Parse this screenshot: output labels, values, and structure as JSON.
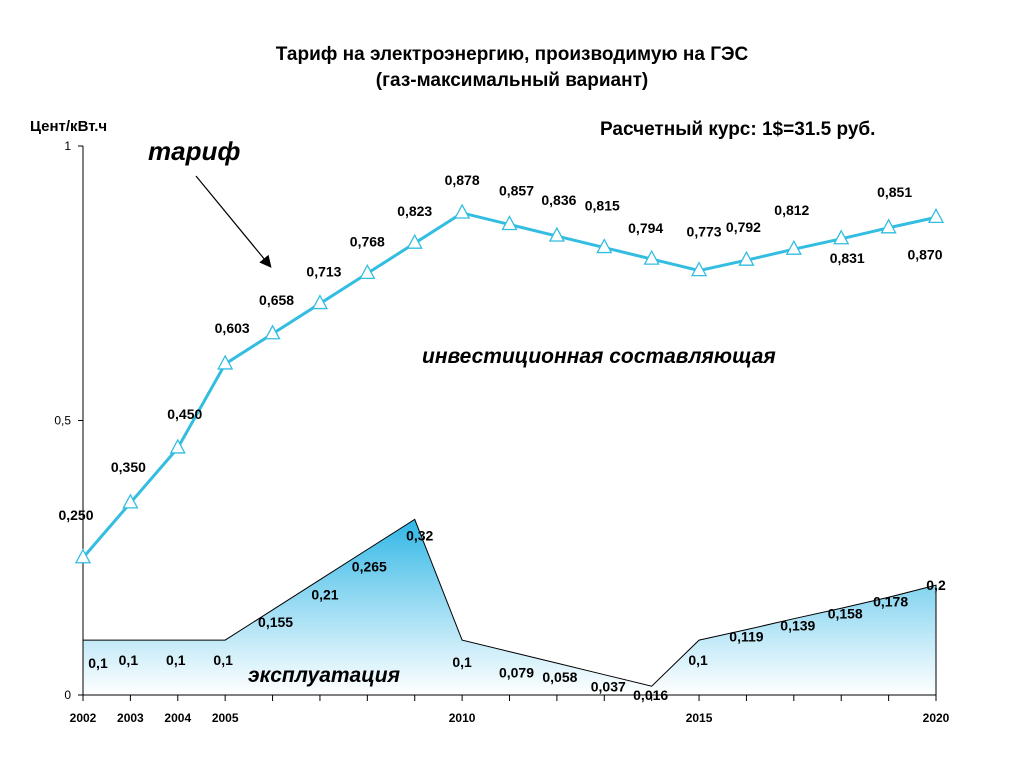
{
  "title_line1": "Тариф на электроэнергию, производимую на ГЭС",
  "title_line2": "(газ-максимальный вариант)",
  "rate_note": "Расчетный курс: 1$=31.5 руб.",
  "colors": {
    "tariff_line": "#33bde0",
    "area_top": "#2fb6e6",
    "area_bottom": "#ffffff",
    "axis": "#000000"
  },
  "chart_data": {
    "type": "line",
    "title": "Тариф на электроэнергию, производимую на ГЭС (газ-максимальный вариант)",
    "ylabel": "Цент/кВт.ч",
    "ylim": [
      0,
      1
    ],
    "y_ticks": [
      "0",
      "0,5",
      "1"
    ],
    "xlim": [
      2002,
      2020
    ],
    "x_tick_labels": [
      "2002",
      "2003",
      "2004",
      "2005",
      "2010",
      "2015",
      "2020"
    ],
    "x": [
      2002,
      2003,
      2004,
      2005,
      2006,
      2007,
      2008,
      2009,
      2010,
      2011,
      2012,
      2013,
      2014,
      2015,
      2016,
      2017,
      2018,
      2019,
      2020
    ],
    "series": [
      {
        "name": "тариф",
        "kind": "line",
        "values": [
          0.25,
          0.35,
          0.45,
          0.603,
          0.658,
          0.713,
          0.768,
          0.823,
          0.878,
          0.857,
          0.836,
          0.815,
          0.794,
          0.773,
          0.792,
          0.812,
          0.831,
          0.851,
          0.87
        ],
        "labels": [
          "0,250",
          "0,350",
          "0,450",
          "0,603",
          "0,658",
          "0,713",
          "0,768",
          "0,823",
          "0,878",
          "0,857",
          "0,836",
          "0,815",
          "0,794",
          "0,773",
          "0,792",
          "0,812",
          "0,831",
          "0,851",
          "0,870"
        ]
      },
      {
        "name": "эксплуатация",
        "kind": "area",
        "values": [
          0.1,
          0.1,
          0.1,
          0.1,
          0.155,
          0.21,
          0.265,
          0.32,
          0.1,
          0.079,
          0.058,
          0.037,
          0.016,
          0.1,
          0.119,
          0.139,
          0.158,
          0.178,
          0.2
        ],
        "labels": [
          "0,1",
          "0,1",
          "0,1",
          "0,1",
          "0,155",
          "0,21",
          "0,265",
          "0,32",
          "0,1",
          "0,079",
          "0,058",
          "0,037",
          "0,016",
          "0,1",
          "0,119",
          "0,139",
          "0,158",
          "0,178",
          "0,2"
        ]
      }
    ],
    "annotations": [
      "тариф",
      "инвестиционная составляющая",
      "эксплуатация"
    ],
    "grid": false
  }
}
